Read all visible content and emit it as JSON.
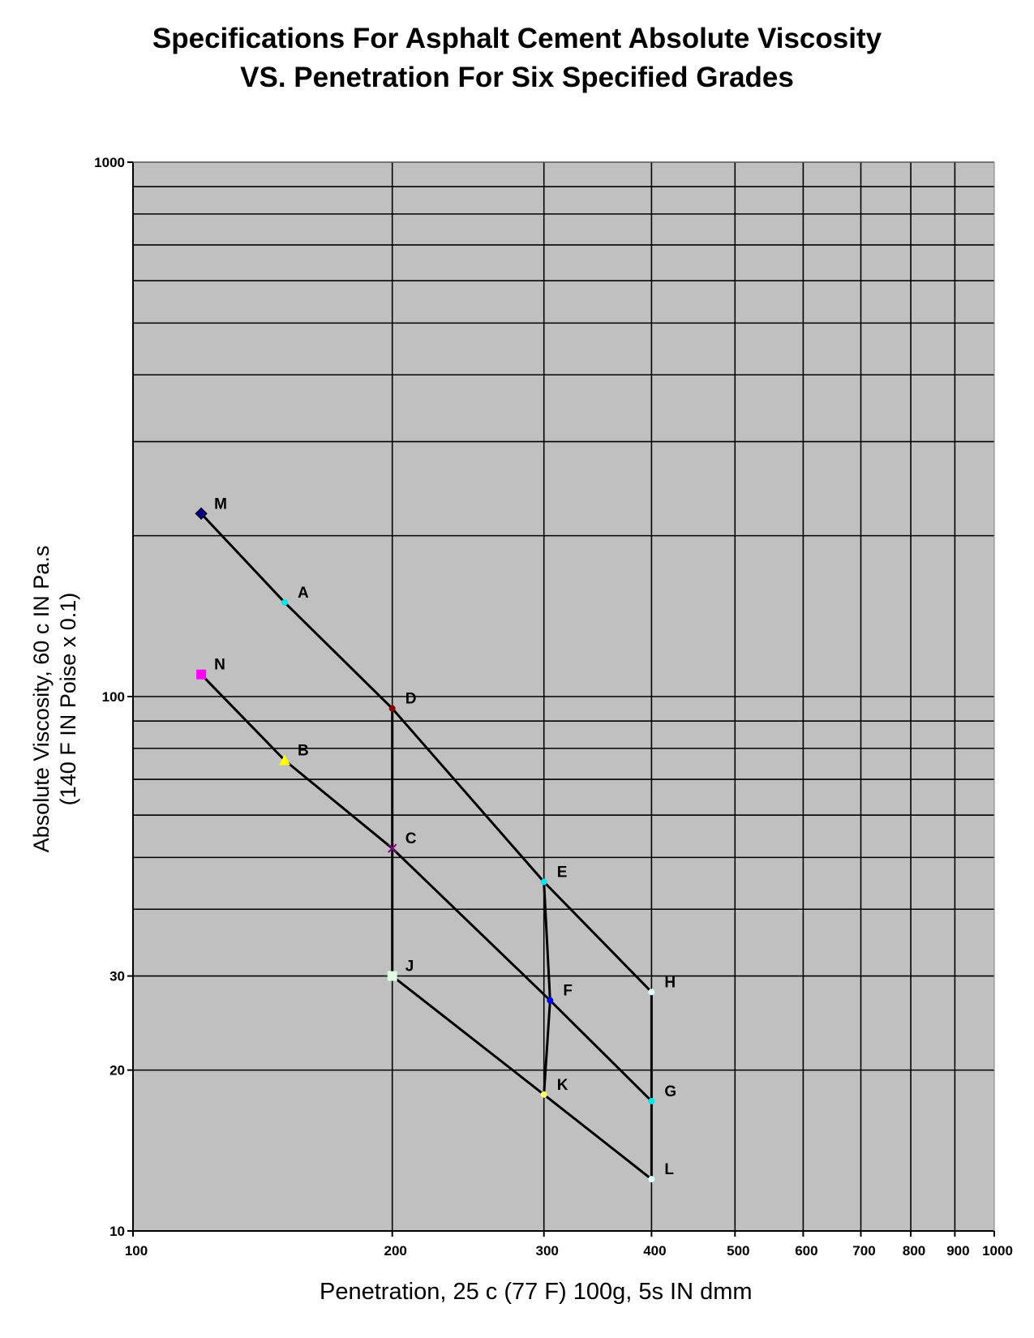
{
  "chart_data": {
    "type": "line",
    "title": "Specifications For Asphalt Cement Absolute Viscosity",
    "subtitle": "VS. Penetration For Six Specified Grades",
    "xlabel": "Penetration, 25 c (77 F) 100g, 5s IN dmm",
    "ylabel_line1": "Absolute Viscosity, 60 c IN Pa.s",
    "ylabel_line2": "(140 F IN Poise x 0.1)",
    "x_scale": "log",
    "y_scale": "log",
    "xlim": [
      100,
      1000
    ],
    "ylim": [
      10,
      1000
    ],
    "x_ticks": [
      100,
      200,
      300,
      400,
      500,
      600,
      700,
      800,
      900,
      1000
    ],
    "x_tick_labels": [
      "100",
      "200",
      "300",
      "400",
      "500",
      "600",
      "700",
      "800",
      "900",
      "1000"
    ],
    "y_ticks": [
      10,
      20,
      30,
      100,
      1000
    ],
    "y_tick_labels": [
      "10",
      "20",
      "30",
      "100",
      "1000"
    ],
    "y_gridlines": [
      20,
      30,
      40,
      50,
      60,
      70,
      80,
      90,
      100,
      200,
      300,
      400,
      500,
      600,
      700,
      800,
      900,
      1000
    ],
    "grid": true,
    "background": "#c0c0c0",
    "points": [
      {
        "label": "M",
        "x": 120,
        "y": 220,
        "color": "#000080",
        "marker": "diamond"
      },
      {
        "label": "A",
        "x": 150,
        "y": 150,
        "color": "#00e5ee",
        "marker": "dot"
      },
      {
        "label": "D",
        "x": 200,
        "y": 95,
        "color": "#800000",
        "marker": "dot"
      },
      {
        "label": "E",
        "x": 300,
        "y": 45,
        "color": "#00e5ee",
        "marker": "dot"
      },
      {
        "label": "H",
        "x": 400,
        "y": 28,
        "color": "#e0ffff",
        "marker": "dot"
      },
      {
        "label": "N",
        "x": 120,
        "y": 110,
        "color": "#ff00ff",
        "marker": "square"
      },
      {
        "label": "B",
        "x": 150,
        "y": 76,
        "color": "#ffff00",
        "marker": "triangle"
      },
      {
        "label": "C",
        "x": 200,
        "y": 52,
        "color": "#800080",
        "marker": "x"
      },
      {
        "label": "F",
        "x": 305,
        "y": 27,
        "color": "#0000ff",
        "marker": "dot"
      },
      {
        "label": "G",
        "x": 400,
        "y": 17.5,
        "color": "#00e5ee",
        "marker": "dot"
      },
      {
        "label": "J",
        "x": 200,
        "y": 30,
        "color": "#e0ffe0",
        "marker": "square"
      },
      {
        "label": "K",
        "x": 300,
        "y": 18,
        "color": "#ffff66",
        "marker": "dot"
      },
      {
        "label": "L",
        "x": 400,
        "y": 12.5,
        "color": "#e0ffff",
        "marker": "dot"
      }
    ],
    "series": [
      {
        "points": [
          "M",
          "A",
          "D",
          "E",
          "H"
        ]
      },
      {
        "points": [
          "N",
          "B",
          "C",
          "F",
          "G"
        ]
      },
      {
        "points": [
          "J",
          "K",
          "L"
        ]
      },
      {
        "points": [
          "D",
          "C",
          "J"
        ]
      },
      {
        "points": [
          "E",
          "F",
          "K"
        ]
      },
      {
        "points": [
          "H",
          "G",
          "L"
        ]
      }
    ]
  }
}
